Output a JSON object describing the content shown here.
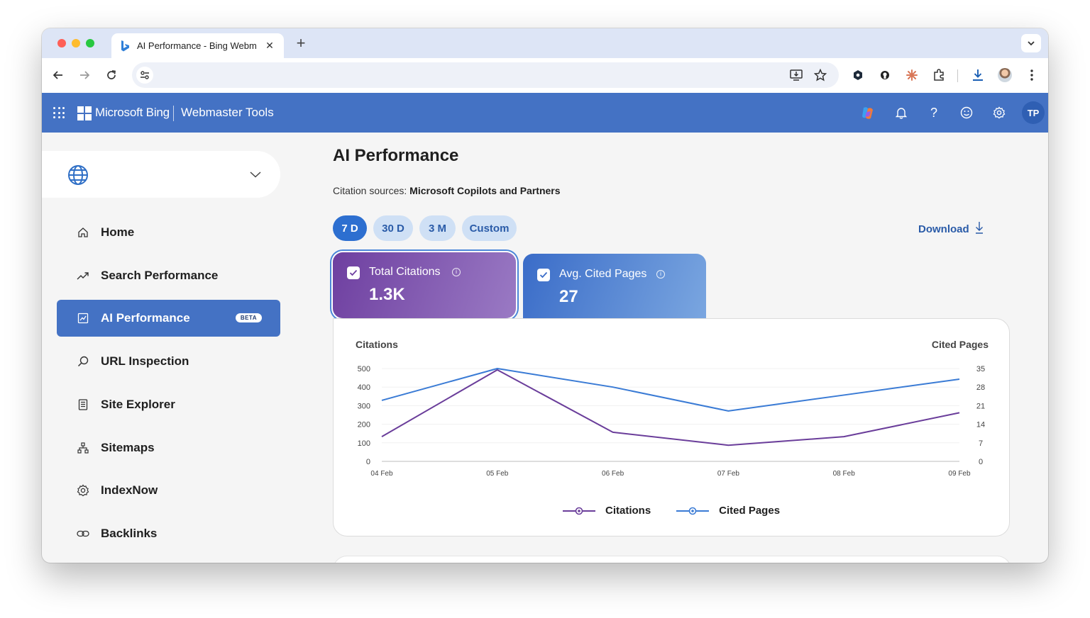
{
  "browser": {
    "tab_title": "AI Performance - Bing Webmaster Tools",
    "new_tab_label": "+",
    "tab_close_label": "✕"
  },
  "header": {
    "brand": "Microsoft Bing",
    "product": "Webmaster Tools",
    "avatar_initials": "TP",
    "help_label": "?"
  },
  "sidebar": {
    "items": [
      {
        "label": "Home",
        "icon": "home-icon"
      },
      {
        "label": "Search Performance",
        "icon": "trend-icon"
      },
      {
        "label": "AI Performance",
        "icon": "ai-chart-icon",
        "badge": "BETA",
        "active": true
      },
      {
        "label": "URL Inspection",
        "icon": "search-icon"
      },
      {
        "label": "Site Explorer",
        "icon": "document-icon"
      },
      {
        "label": "Sitemaps",
        "icon": "sitemap-icon"
      },
      {
        "label": "IndexNow",
        "icon": "gear-icon"
      },
      {
        "label": "Backlinks",
        "icon": "link-icon"
      }
    ]
  },
  "main": {
    "title": "AI Performance",
    "citation_sources_label": "Citation sources:",
    "citation_sources_value": "Microsoft Copilots and Partners",
    "ranges": [
      "7 D",
      "30 D",
      "3 M",
      "Custom"
    ],
    "active_range": "7 D",
    "download_label": "Download",
    "metrics": [
      {
        "label": "Total Citations",
        "value": "1.3K",
        "checked": true
      },
      {
        "label": "Avg. Cited Pages",
        "value": "27",
        "checked": true
      }
    ]
  },
  "colors": {
    "header_blue": "#4472c4",
    "citations_purple": "#6a3d9a",
    "cited_pages_blue": "#3a7bd5"
  },
  "chart_data": {
    "type": "line",
    "ylabel_left": "Citations",
    "ylabel_right": "Cited Pages",
    "categories": [
      "04 Feb",
      "05 Feb",
      "06 Feb",
      "07 Feb",
      "08 Feb",
      "09 Feb"
    ],
    "y_left_ticks": [
      0,
      100,
      200,
      300,
      400,
      500
    ],
    "y_right_ticks": [
      0,
      7,
      14,
      21,
      28,
      35
    ],
    "ylim_left": [
      0,
      500
    ],
    "ylim_right": [
      0,
      35
    ],
    "series": [
      {
        "name": "Citations",
        "axis": "left",
        "color": "#6a3d9a",
        "values": [
          133,
          493,
          157,
          87,
          133,
          262
        ]
      },
      {
        "name": "Cited Pages",
        "axis": "right",
        "color": "#3a7bd5",
        "values": [
          23,
          35,
          28,
          19,
          25,
          31
        ]
      }
    ],
    "grid": true,
    "legend_position": "bottom-center"
  }
}
